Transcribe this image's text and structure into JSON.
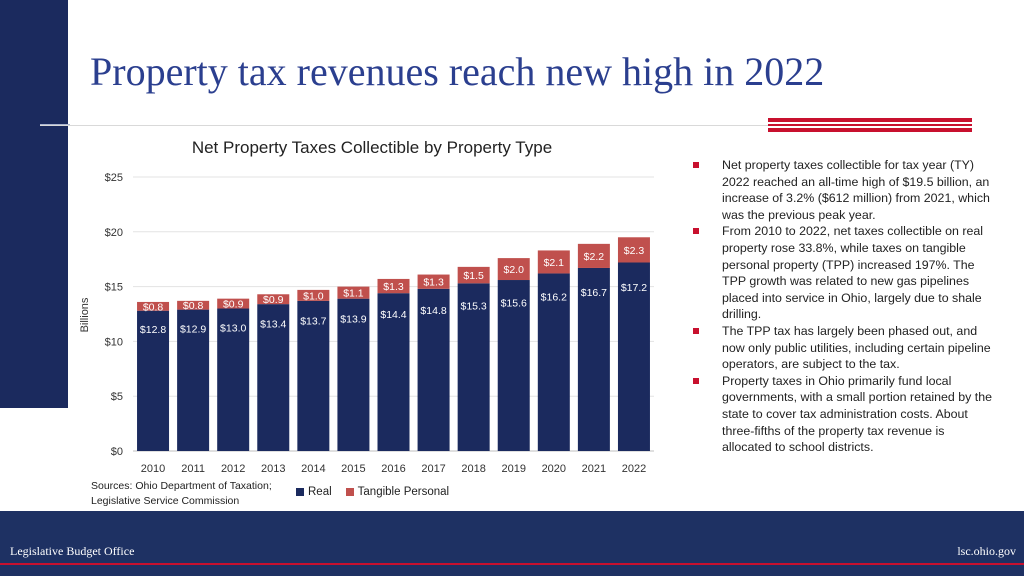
{
  "slide": {
    "title": "Property tax revenues reach new high in 2022",
    "sources_line1": "Sources: Ohio Department of Taxation;",
    "sources_line2": "Legislative Service Commission",
    "bullets": [
      "Net property taxes collectible for tax year (TY) 2022 reached an all-time high of $19.5 billion, an increase of 3.2% ($612 million) from 2021, which was the previous peak year.",
      "From 2010 to 2022, net taxes collectible on real property rose 33.8%, while taxes on tangible personal property (TPP) increased 197%. The TPP growth was related to new gas pipelines placed into service in Ohio, largely due to shale drilling.",
      "The TPP tax has largely been phased out, and now only public utilities, including certain pipeline operators, are subject to the tax.",
      "Property taxes in Ohio primarily fund local governments, with a small portion retained by the state to cover tax administration costs. About three-fifths of the property tax revenue is allocated to school districts."
    ]
  },
  "footer": {
    "left": "Legislative Budget Office",
    "right": "lsc.ohio.gov"
  },
  "colors": {
    "real": "#1b2a5e",
    "tangible": "#c0504d",
    "accent": "#c8102e",
    "title": "#2b3f8f"
  },
  "chart_data": {
    "type": "bar",
    "stacked": true,
    "title": "Net Property Taxes Collectible by Property Type",
    "xlabel": "",
    "ylabel": "Billions",
    "ylim": [
      0,
      25
    ],
    "yticks": [
      0,
      5,
      10,
      15,
      20,
      25
    ],
    "ytick_labels": [
      "$0",
      "$5",
      "$10",
      "$15",
      "$20",
      "$25"
    ],
    "grid": true,
    "legend_position": "bottom",
    "categories": [
      "2010",
      "2011",
      "2012",
      "2013",
      "2014",
      "2015",
      "2016",
      "2017",
      "2018",
      "2019",
      "2020",
      "2021",
      "2022"
    ],
    "series": [
      {
        "name": "Real",
        "values": [
          12.8,
          12.9,
          13.0,
          13.4,
          13.7,
          13.9,
          14.4,
          14.8,
          15.3,
          15.6,
          16.2,
          16.7,
          17.2
        ],
        "labels": [
          "$12.8",
          "$12.9",
          "$13.0",
          "$13.4",
          "$13.7",
          "$13.9",
          "$14.4",
          "$14.8",
          "$15.3",
          "$15.6",
          "$16.2",
          "$16.7",
          "$17.2"
        ]
      },
      {
        "name": "Tangible Personal",
        "values": [
          0.8,
          0.8,
          0.9,
          0.9,
          1.0,
          1.1,
          1.3,
          1.3,
          1.5,
          2.0,
          2.1,
          2.2,
          2.3
        ],
        "labels": [
          "$0.8",
          "$0.8",
          "$0.9",
          "$0.9",
          "$1.0",
          "$1.1",
          "$1.3",
          "$1.3",
          "$1.5",
          "$2.0",
          "$2.1",
          "$2.2",
          "$2.3"
        ]
      }
    ]
  }
}
